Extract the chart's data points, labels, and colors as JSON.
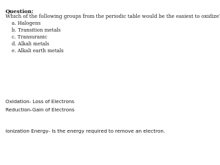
{
  "background_color": "#ffffff",
  "question_label": "Question:",
  "question_text": "Which of the following groups from the periodic table would be the easiest to oxidize?",
  "choices": [
    "    a. Halogens",
    "    b. Transition metals",
    "    c. Transuranic",
    "    d. Alkali metals",
    "    e. Alkali earth metals"
  ],
  "bottom_lines": [
    "Oxidation- Loss of Electrons",
    "Reduction-Gain of Electrons"
  ],
  "ionization_line": "Ionization Energy- Is the energy required to remove an electron.",
  "text_color": "#1a1a1a",
  "font_size_question_label": 5.5,
  "font_size_question": 5.2,
  "font_size_choices": 5.0,
  "font_size_bottom": 5.2,
  "font_size_ionization": 5.2
}
